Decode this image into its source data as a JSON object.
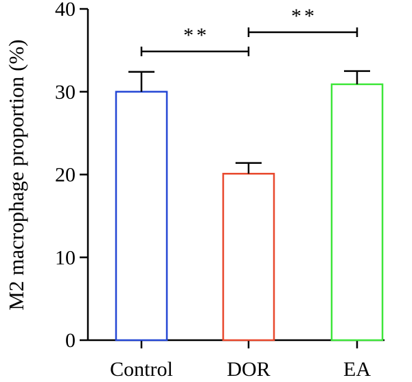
{
  "chart_data": {
    "type": "bar",
    "title": "",
    "xlabel": "",
    "ylabel": "M2 macrophage proportion (%)",
    "ylim": [
      0,
      40
    ],
    "yticks": [
      0,
      10,
      20,
      30,
      40
    ],
    "categories": [
      "Control",
      "DOR",
      "EA"
    ],
    "values": [
      30.0,
      20.1,
      30.9
    ],
    "errors": [
      2.4,
      1.3,
      1.6
    ],
    "colors": [
      "#2346d4",
      "#e8472b",
      "#3ee63a"
    ],
    "significance": [
      {
        "from": "Control",
        "to": "DOR",
        "label": "**"
      },
      {
        "from": "DOR",
        "to": "EA",
        "label": "**"
      }
    ],
    "grid": false,
    "legend": "none"
  }
}
